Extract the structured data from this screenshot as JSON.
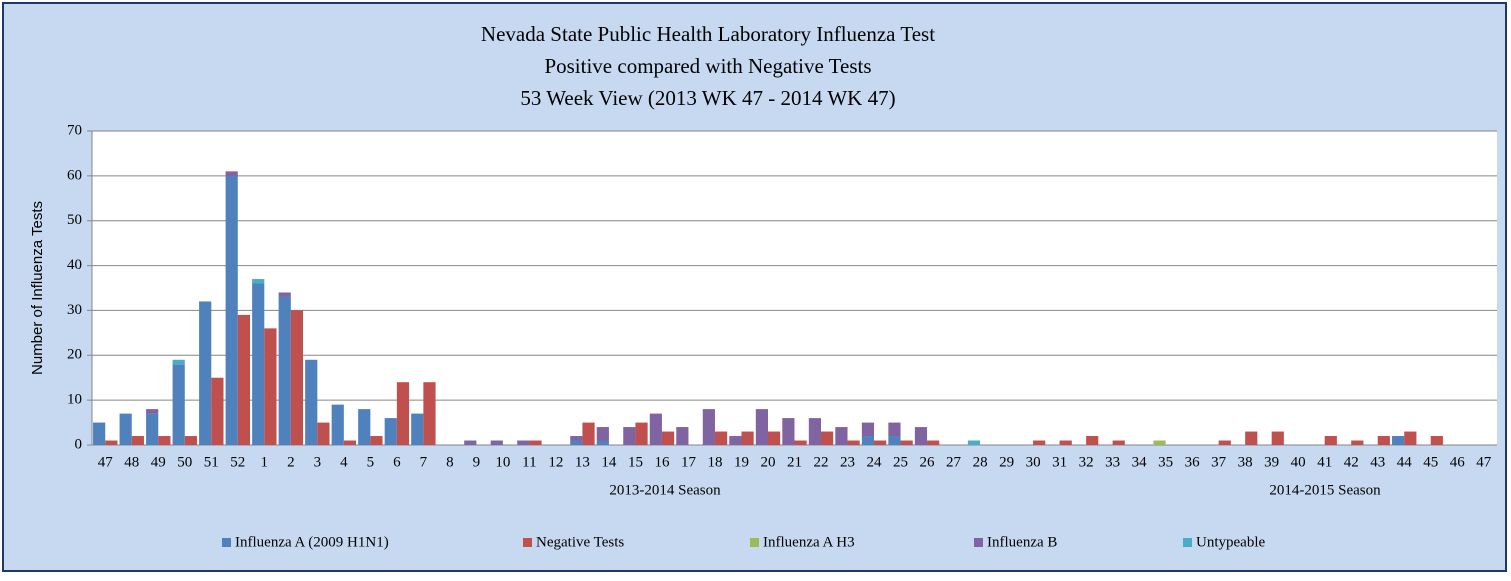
{
  "chart_data": {
    "type": "bar",
    "title": [
      "Nevada State Public Health Laboratory Influenza Test",
      "Positive compared with Negative Tests",
      "53 Week View (2013 WK 47 - 2014 WK 47)"
    ],
    "y_label": "Number of Influenza Tests",
    "season_labels": [
      "2013-2014 Season",
      "2014-2015 Season"
    ],
    "categories": [
      "47",
      "48",
      "49",
      "50",
      "51",
      "52",
      "1",
      "2",
      "3",
      "4",
      "5",
      "6",
      "7",
      "8",
      "9",
      "10",
      "11",
      "12",
      "13",
      "14",
      "15",
      "16",
      "17",
      "18",
      "19",
      "20",
      "21",
      "22",
      "23",
      "24",
      "25",
      "26",
      "27",
      "28",
      "29",
      "30",
      "31",
      "32",
      "33",
      "34",
      "35",
      "36",
      "37",
      "38",
      "39",
      "40",
      "41",
      "42",
      "43",
      "44",
      "45",
      "46",
      "47"
    ],
    "series": [
      {
        "name": "Influenza A (2009 H1N1)",
        "color": "#4f81bd",
        "position": "left",
        "values": [
          5,
          7,
          7,
          18,
          32,
          60,
          36,
          33,
          19,
          9,
          8,
          6,
          7,
          0,
          0,
          0,
          0,
          0,
          1,
          1,
          0,
          0,
          0,
          0,
          0,
          0,
          0,
          0,
          0,
          2,
          2,
          0,
          0,
          0,
          0,
          0,
          0,
          0,
          0,
          0,
          0,
          0,
          0,
          0,
          0,
          0,
          0,
          0,
          0,
          2,
          0,
          0,
          0
        ]
      },
      {
        "name": "Negative Tests",
        "color": "#c0504d",
        "position": "right",
        "values": [
          1,
          2,
          2,
          2,
          15,
          29,
          26,
          30,
          5,
          1,
          2,
          14,
          14,
          0,
          0,
          0,
          1,
          0,
          5,
          0,
          5,
          3,
          0,
          3,
          3,
          3,
          1,
          3,
          1,
          1,
          1,
          1,
          0,
          0,
          0,
          1,
          1,
          2,
          1,
          0,
          0,
          0,
          1,
          3,
          3,
          0,
          2,
          1,
          2,
          3,
          2,
          0,
          0
        ]
      },
      {
        "name": "Influenza A H3",
        "color": "#9bbb59",
        "position": "left",
        "values": [
          0,
          0,
          0,
          0,
          0,
          0,
          0,
          0,
          0,
          0,
          0,
          0,
          0,
          0,
          0,
          0,
          0,
          0,
          0,
          0,
          0,
          0,
          0,
          0,
          0,
          0,
          0,
          0,
          0,
          0,
          0,
          0,
          0,
          0,
          0,
          0,
          0,
          0,
          0,
          0,
          1,
          0,
          0,
          0,
          0,
          0,
          0,
          0,
          0,
          0,
          0,
          0,
          0
        ]
      },
      {
        "name": "Influenza B",
        "color": "#8064a2",
        "position": "left",
        "values": [
          0,
          0,
          1,
          0,
          0,
          1,
          0,
          1,
          0,
          0,
          0,
          0,
          0,
          0,
          1,
          1,
          1,
          0,
          1,
          3,
          4,
          7,
          4,
          8,
          2,
          8,
          6,
          6,
          4,
          3,
          3,
          4,
          0,
          0,
          0,
          0,
          0,
          0,
          0,
          0,
          0,
          0,
          0,
          0,
          0,
          0,
          0,
          0,
          0,
          0,
          0,
          0,
          0
        ]
      },
      {
        "name": "Untypeable",
        "color": "#4bacc6",
        "position": "left",
        "values": [
          0,
          0,
          0,
          1,
          0,
          0,
          1,
          0,
          0,
          0,
          0,
          0,
          0,
          0,
          0,
          0,
          0,
          0,
          0,
          0,
          0,
          0,
          0,
          0,
          0,
          0,
          0,
          0,
          0,
          0,
          0,
          0,
          0,
          1,
          0,
          0,
          0,
          0,
          0,
          0,
          0,
          0,
          0,
          0,
          0,
          0,
          0,
          0,
          0,
          0,
          0,
          0,
          0
        ]
      }
    ],
    "ylim": [
      0,
      70
    ],
    "yticks": [
      0,
      10,
      20,
      30,
      40,
      50,
      60,
      70
    ],
    "grid": true
  }
}
